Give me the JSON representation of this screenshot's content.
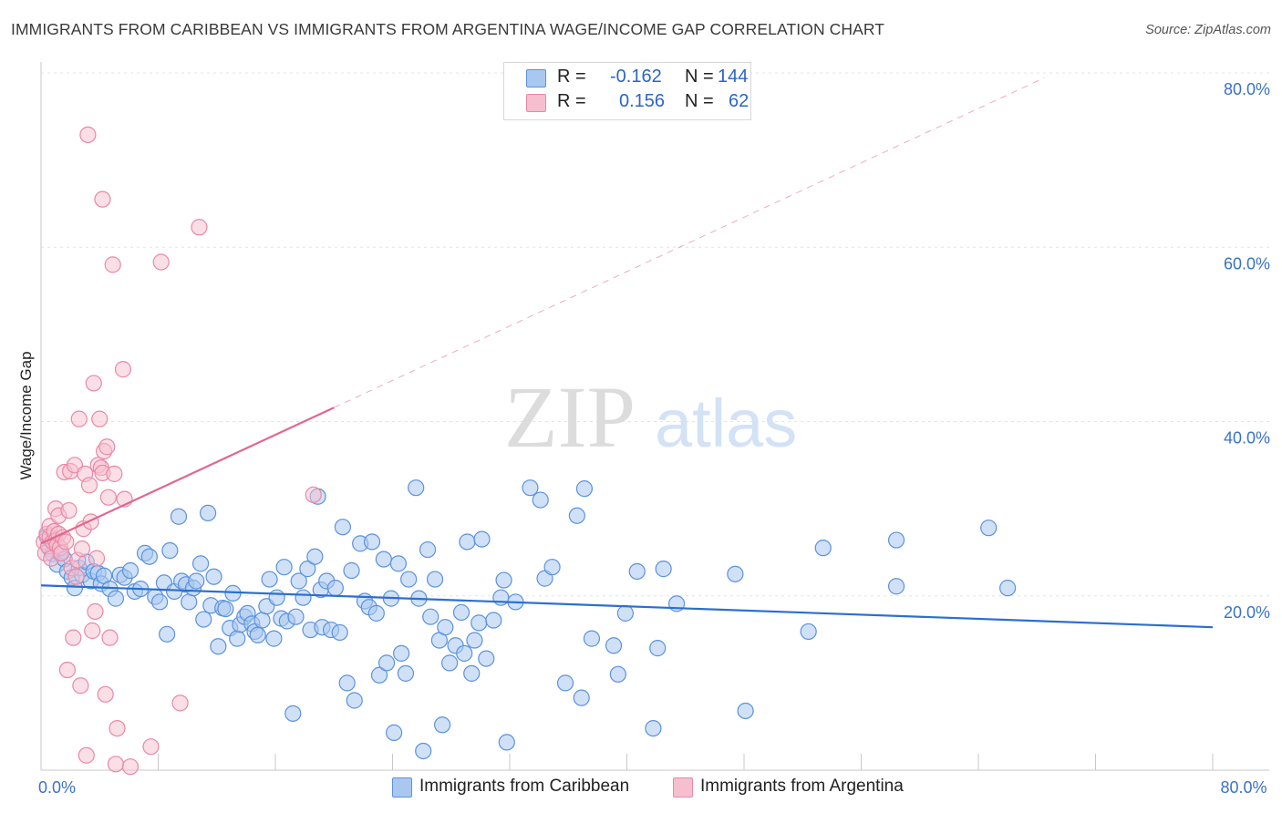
{
  "title": "IMMIGRANTS FROM CARIBBEAN VS IMMIGRANTS FROM ARGENTINA WAGE/INCOME GAP CORRELATION CHART",
  "source": "Source: ZipAtlas.com",
  "watermark": {
    "zip": "ZIP",
    "atlas": "atlas"
  },
  "legend": {
    "r_label": "R =",
    "n_label": "N =",
    "caribbean": {
      "r": "-0.162",
      "n": "144"
    },
    "argentina": {
      "r": "0.156",
      "n": "62"
    }
  },
  "colors": {
    "caribbean_fill": "#a9c8f0",
    "caribbean_stroke": "#5b92dd",
    "caribbean_line": "#2b6fce",
    "argentina_fill": "#f6bfd0",
    "argentina_stroke": "#ea88a6",
    "argentina_line": "#e0678f",
    "axis_text": "#3a72c8"
  },
  "chart_data": {
    "type": "scatter",
    "title": "IMMIGRANTS FROM CARIBBEAN VS IMMIGRANTS FROM ARGENTINA WAGE/INCOME GAP CORRELATION CHART",
    "xlabel": "",
    "ylabel": "Wage/Income Gap",
    "xlim": [
      0,
      0.8
    ],
    "ylim": [
      0,
      0.8
    ],
    "x_tick_labels": [
      {
        "value": 0,
        "label": "0.0%"
      },
      {
        "value": 0.8,
        "label": "80.0%"
      }
    ],
    "y_tick_labels": [
      {
        "value": 0.2,
        "label": "20.0%"
      },
      {
        "value": 0.4,
        "label": "40.0%"
      },
      {
        "value": 0.6,
        "label": "60.0%"
      },
      {
        "value": 0.8,
        "label": "80.0%"
      }
    ],
    "grid": true,
    "legend_position": "top-center",
    "series": [
      {
        "name": "Immigrants from Caribbean",
        "r": -0.162,
        "n": 144,
        "trend": {
          "x": [
            0,
            0.8
          ],
          "y": [
            0.212,
            0.164
          ]
        },
        "points": [
          [
            0.004,
            0.268
          ],
          [
            0.006,
            0.254
          ],
          [
            0.008,
            0.248
          ],
          [
            0.011,
            0.236
          ],
          [
            0.013,
            0.249
          ],
          [
            0.016,
            0.242
          ],
          [
            0.018,
            0.228
          ],
          [
            0.021,
            0.221
          ],
          [
            0.023,
            0.209
          ],
          [
            0.026,
            0.232
          ],
          [
            0.028,
            0.224
          ],
          [
            0.031,
            0.239
          ],
          [
            0.034,
            0.217
          ],
          [
            0.036,
            0.228
          ],
          [
            0.039,
            0.226
          ],
          [
            0.041,
            0.214
          ],
          [
            0.043,
            0.223
          ],
          [
            0.047,
            0.208
          ],
          [
            0.051,
            0.197
          ],
          [
            0.054,
            0.224
          ],
          [
            0.057,
            0.221
          ],
          [
            0.061,
            0.229
          ],
          [
            0.064,
            0.205
          ],
          [
            0.068,
            0.208
          ],
          [
            0.071,
            0.249
          ],
          [
            0.074,
            0.245
          ],
          [
            0.078,
            0.199
          ],
          [
            0.081,
            0.193
          ],
          [
            0.084,
            0.215
          ],
          [
            0.086,
            0.156
          ],
          [
            0.088,
            0.252
          ],
          [
            0.091,
            0.205
          ],
          [
            0.094,
            0.291
          ],
          [
            0.096,
            0.217
          ],
          [
            0.099,
            0.213
          ],
          [
            0.101,
            0.193
          ],
          [
            0.104,
            0.209
          ],
          [
            0.106,
            0.217
          ],
          [
            0.109,
            0.237
          ],
          [
            0.111,
            0.173
          ],
          [
            0.114,
            0.295
          ],
          [
            0.116,
            0.189
          ],
          [
            0.118,
            0.222
          ],
          [
            0.121,
            0.142
          ],
          [
            0.124,
            0.186
          ],
          [
            0.126,
            0.185
          ],
          [
            0.129,
            0.163
          ],
          [
            0.131,
            0.203
          ],
          [
            0.134,
            0.151
          ],
          [
            0.136,
            0.167
          ],
          [
            0.139,
            0.176
          ],
          [
            0.141,
            0.18
          ],
          [
            0.144,
            0.168
          ],
          [
            0.146,
            0.159
          ],
          [
            0.148,
            0.155
          ],
          [
            0.151,
            0.172
          ],
          [
            0.154,
            0.188
          ],
          [
            0.156,
            0.219
          ],
          [
            0.159,
            0.151
          ],
          [
            0.161,
            0.198
          ],
          [
            0.164,
            0.174
          ],
          [
            0.166,
            0.233
          ],
          [
            0.168,
            0.171
          ],
          [
            0.172,
            0.065
          ],
          [
            0.174,
            0.176
          ],
          [
            0.176,
            0.217
          ],
          [
            0.179,
            0.198
          ],
          [
            0.182,
            0.231
          ],
          [
            0.184,
            0.161
          ],
          [
            0.187,
            0.245
          ],
          [
            0.189,
            0.314
          ],
          [
            0.191,
            0.207
          ],
          [
            0.192,
            0.164
          ],
          [
            0.195,
            0.217
          ],
          [
            0.198,
            0.161
          ],
          [
            0.201,
            0.209
          ],
          [
            0.204,
            0.158
          ],
          [
            0.206,
            0.279
          ],
          [
            0.209,
            0.1
          ],
          [
            0.212,
            0.229
          ],
          [
            0.214,
            0.08
          ],
          [
            0.218,
            0.26
          ],
          [
            0.221,
            0.194
          ],
          [
            0.224,
            0.187
          ],
          [
            0.226,
            0.262
          ],
          [
            0.229,
            0.18
          ],
          [
            0.231,
            0.109
          ],
          [
            0.234,
            0.242
          ],
          [
            0.236,
            0.123
          ],
          [
            0.239,
            0.197
          ],
          [
            0.241,
            0.043
          ],
          [
            0.244,
            0.237
          ],
          [
            0.246,
            0.134
          ],
          [
            0.249,
            0.111
          ],
          [
            0.251,
            0.219
          ],
          [
            0.256,
            0.324
          ],
          [
            0.258,
            0.197
          ],
          [
            0.261,
            0.022
          ],
          [
            0.264,
            0.253
          ],
          [
            0.266,
            0.176
          ],
          [
            0.269,
            0.219
          ],
          [
            0.272,
            0.149
          ],
          [
            0.274,
            0.052
          ],
          [
            0.276,
            0.164
          ],
          [
            0.279,
            0.123
          ],
          [
            0.283,
            0.143
          ],
          [
            0.287,
            0.181
          ],
          [
            0.289,
            0.134
          ],
          [
            0.291,
            0.262
          ],
          [
            0.294,
            0.111
          ],
          [
            0.296,
            0.149
          ],
          [
            0.299,
            0.169
          ],
          [
            0.301,
            0.265
          ],
          [
            0.304,
            0.128
          ],
          [
            0.309,
            0.172
          ],
          [
            0.314,
            0.198
          ],
          [
            0.316,
            0.218
          ],
          [
            0.318,
            0.032
          ],
          [
            0.324,
            0.193
          ],
          [
            0.334,
            0.324
          ],
          [
            0.341,
            0.31
          ],
          [
            0.344,
            0.22
          ],
          [
            0.349,
            0.233
          ],
          [
            0.358,
            0.1
          ],
          [
            0.366,
            0.292
          ],
          [
            0.369,
            0.083
          ],
          [
            0.371,
            0.323
          ],
          [
            0.376,
            0.151
          ],
          [
            0.391,
            0.143
          ],
          [
            0.394,
            0.11
          ],
          [
            0.399,
            0.18
          ],
          [
            0.407,
            0.228
          ],
          [
            0.418,
            0.048
          ],
          [
            0.421,
            0.14
          ],
          [
            0.425,
            0.231
          ],
          [
            0.434,
            0.191
          ],
          [
            0.474,
            0.225
          ],
          [
            0.481,
            0.068
          ],
          [
            0.524,
            0.159
          ],
          [
            0.534,
            0.255
          ],
          [
            0.584,
            0.264
          ],
          [
            0.584,
            0.211
          ],
          [
            0.647,
            0.278
          ],
          [
            0.66,
            0.209
          ]
        ]
      },
      {
        "name": "Immigrants from Argentina",
        "r": 0.156,
        "n": 62,
        "trend": {
          "x": [
            0,
            0.2
          ],
          "y": [
            0.26,
            0.416
          ]
        },
        "points": [
          [
            0.002,
            0.262
          ],
          [
            0.003,
            0.249
          ],
          [
            0.004,
            0.271
          ],
          [
            0.005,
            0.257
          ],
          [
            0.006,
            0.268
          ],
          [
            0.006,
            0.28
          ],
          [
            0.007,
            0.243
          ],
          [
            0.008,
            0.262
          ],
          [
            0.009,
            0.274
          ],
          [
            0.01,
            0.263
          ],
          [
            0.01,
            0.3
          ],
          [
            0.011,
            0.258
          ],
          [
            0.012,
            0.271
          ],
          [
            0.012,
            0.292
          ],
          [
            0.013,
            0.255
          ],
          [
            0.014,
            0.249
          ],
          [
            0.015,
            0.267
          ],
          [
            0.016,
            0.342
          ],
          [
            0.017,
            0.262
          ],
          [
            0.018,
            0.115
          ],
          [
            0.019,
            0.298
          ],
          [
            0.02,
            0.343
          ],
          [
            0.021,
            0.232
          ],
          [
            0.022,
            0.152
          ],
          [
            0.023,
            0.35
          ],
          [
            0.024,
            0.222
          ],
          [
            0.025,
            0.241
          ],
          [
            0.026,
            0.403
          ],
          [
            0.027,
            0.097
          ],
          [
            0.028,
            0.254
          ],
          [
            0.029,
            0.277
          ],
          [
            0.03,
            0.34
          ],
          [
            0.031,
            0.017
          ],
          [
            0.032,
            0.729
          ],
          [
            0.033,
            0.327
          ],
          [
            0.034,
            0.285
          ],
          [
            0.035,
            0.16
          ],
          [
            0.036,
            0.444
          ],
          [
            0.037,
            0.182
          ],
          [
            0.038,
            0.243
          ],
          [
            0.039,
            0.35
          ],
          [
            0.04,
            0.403
          ],
          [
            0.041,
            0.347
          ],
          [
            0.042,
            0.341
          ],
          [
            0.042,
            0.655
          ],
          [
            0.043,
            0.366
          ],
          [
            0.044,
            0.087
          ],
          [
            0.045,
            0.371
          ],
          [
            0.046,
            0.313
          ],
          [
            0.047,
            0.152
          ],
          [
            0.049,
            0.58
          ],
          [
            0.05,
            0.34
          ],
          [
            0.051,
            0.007
          ],
          [
            0.052,
            0.048
          ],
          [
            0.056,
            0.46
          ],
          [
            0.057,
            0.311
          ],
          [
            0.061,
            0.004
          ],
          [
            0.075,
            0.027
          ],
          [
            0.082,
            0.583
          ],
          [
            0.095,
            0.077
          ],
          [
            0.108,
            0.623
          ],
          [
            0.186,
            0.316
          ]
        ]
      }
    ]
  },
  "bottom_legend": {
    "caribbean": "Immigrants from Caribbean",
    "argentina": "Immigrants from Argentina"
  }
}
